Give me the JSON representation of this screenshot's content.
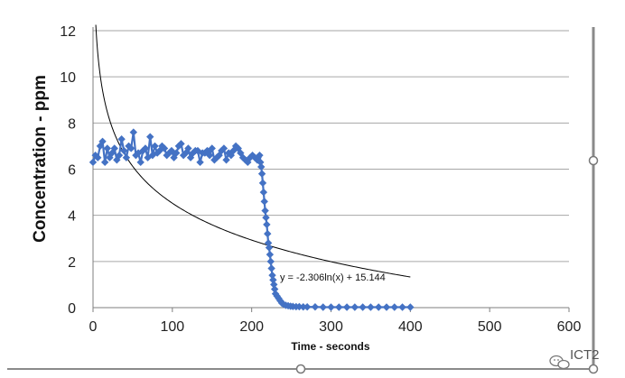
{
  "chart_data": {
    "type": "scatter",
    "title": "",
    "xlabel": "Time - seconds",
    "ylabel": "Concentration - ppm",
    "xlim": [
      0,
      600
    ],
    "ylim": [
      0,
      12
    ],
    "x_ticks": [
      0,
      100,
      200,
      300,
      400,
      500,
      600
    ],
    "y_ticks": [
      0,
      2,
      4,
      6,
      8,
      10,
      12
    ],
    "grid": "horizontal",
    "marker_color": "#4472C4",
    "trendline_color": "#000000",
    "series": [
      {
        "name": "Concentration",
        "x": [
          0,
          3,
          6,
          9,
          12,
          15,
          18,
          21,
          24,
          27,
          30,
          33,
          36,
          39,
          42,
          45,
          48,
          51,
          54,
          57,
          60,
          63,
          66,
          69,
          72,
          75,
          78,
          81,
          84,
          87,
          90,
          93,
          96,
          99,
          102,
          105,
          108,
          111,
          114,
          117,
          120,
          123,
          126,
          129,
          132,
          135,
          138,
          141,
          144,
          147,
          150,
          153,
          156,
          159,
          162,
          165,
          168,
          171,
          174,
          177,
          180,
          183,
          186,
          189,
          192,
          195,
          198,
          201,
          204,
          207,
          208,
          210,
          211,
          212,
          213,
          214,
          215,
          216,
          217,
          218,
          219,
          220,
          221,
          222,
          223,
          224,
          225,
          226,
          227,
          228,
          229,
          230,
          232,
          234,
          236,
          238,
          240,
          243,
          246,
          249,
          252,
          256,
          260,
          265,
          270,
          280,
          290,
          300,
          310,
          320,
          330,
          340,
          350,
          360,
          370,
          380,
          390,
          400
        ],
        "y": [
          6.3,
          6.6,
          6.5,
          7.0,
          7.2,
          6.3,
          6.9,
          6.5,
          6.7,
          6.9,
          6.4,
          6.6,
          7.3,
          6.8,
          6.5,
          7.0,
          6.9,
          7.6,
          6.6,
          6.7,
          6.3,
          6.8,
          6.9,
          6.5,
          7.4,
          6.6,
          7.0,
          6.7,
          6.8,
          7.0,
          6.9,
          6.6,
          6.7,
          6.8,
          6.5,
          6.7,
          7.0,
          7.1,
          6.6,
          6.7,
          6.9,
          6.5,
          6.7,
          6.8,
          6.8,
          6.3,
          6.7,
          6.7,
          6.8,
          6.6,
          6.9,
          6.4,
          6.5,
          6.6,
          6.8,
          6.9,
          6.4,
          6.7,
          6.6,
          6.8,
          7.0,
          6.9,
          6.7,
          6.5,
          6.4,
          6.3,
          6.5,
          6.6,
          6.5,
          6.4,
          6.5,
          6.6,
          6.3,
          6.1,
          5.8,
          5.4,
          5.0,
          4.6,
          4.2,
          3.9,
          3.6,
          3.2,
          2.8,
          2.6,
          2.3,
          2.0,
          1.7,
          1.4,
          1.2,
          1.0,
          0.8,
          0.6,
          0.5,
          0.4,
          0.3,
          0.2,
          0.15,
          0.1,
          0.08,
          0.06,
          0.05,
          0.04,
          0.04,
          0.03,
          0.03,
          0.03,
          0.02,
          0.02,
          0.02,
          0.02,
          0.02,
          0.02,
          0.02,
          0.02,
          0.02,
          0.02,
          0.02,
          0.02
        ]
      }
    ],
    "trendline": {
      "type": "logarithmic",
      "a": -2.306,
      "b": 15.144,
      "x_range": [
        1,
        400
      ],
      "equation_label": "y = -2.306ln(x) + 15.144"
    }
  },
  "watermark": {
    "text": "ICT2"
  }
}
